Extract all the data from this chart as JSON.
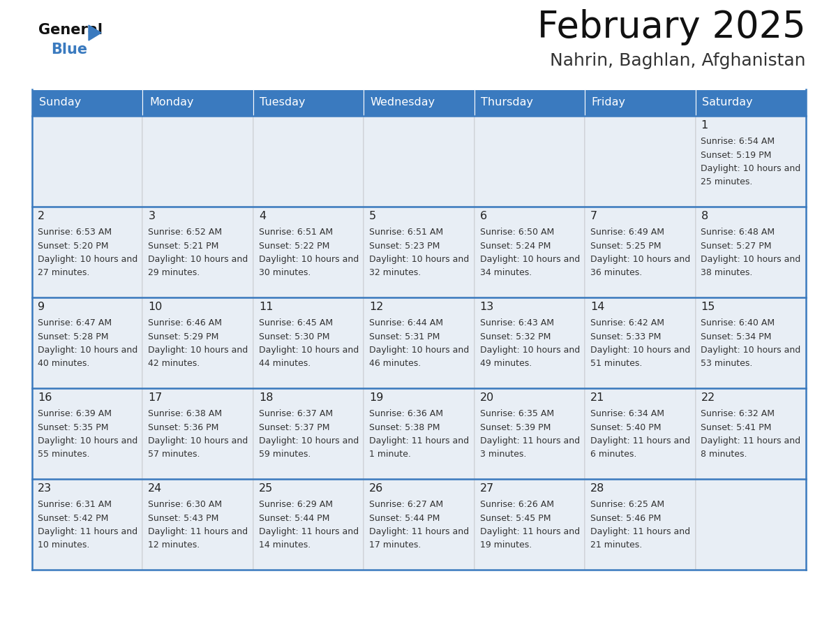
{
  "title": "February 2025",
  "subtitle": "Nahrin, Baghlan, Afghanistan",
  "header_color": "#3a7abf",
  "header_text_color": "#ffffff",
  "cell_bg_light": "#e8eef5",
  "cell_bg_white": "#ffffff",
  "border_color": "#3a7abf",
  "text_color": "#333333",
  "day_num_color": "#222222",
  "days_of_week": [
    "Sunday",
    "Monday",
    "Tuesday",
    "Wednesday",
    "Thursday",
    "Friday",
    "Saturday"
  ],
  "calendar_data": [
    [
      {
        "day": "",
        "sunrise": "",
        "sunset": "",
        "daylight": ""
      },
      {
        "day": "",
        "sunrise": "",
        "sunset": "",
        "daylight": ""
      },
      {
        "day": "",
        "sunrise": "",
        "sunset": "",
        "daylight": ""
      },
      {
        "day": "",
        "sunrise": "",
        "sunset": "",
        "daylight": ""
      },
      {
        "day": "",
        "sunrise": "",
        "sunset": "",
        "daylight": ""
      },
      {
        "day": "",
        "sunrise": "",
        "sunset": "",
        "daylight": ""
      },
      {
        "day": "1",
        "sunrise": "6:54 AM",
        "sunset": "5:19 PM",
        "daylight": "10 hours and 25 minutes."
      }
    ],
    [
      {
        "day": "2",
        "sunrise": "6:53 AM",
        "sunset": "5:20 PM",
        "daylight": "10 hours and 27 minutes."
      },
      {
        "day": "3",
        "sunrise": "6:52 AM",
        "sunset": "5:21 PM",
        "daylight": "10 hours and 29 minutes."
      },
      {
        "day": "4",
        "sunrise": "6:51 AM",
        "sunset": "5:22 PM",
        "daylight": "10 hours and 30 minutes."
      },
      {
        "day": "5",
        "sunrise": "6:51 AM",
        "sunset": "5:23 PM",
        "daylight": "10 hours and 32 minutes."
      },
      {
        "day": "6",
        "sunrise": "6:50 AM",
        "sunset": "5:24 PM",
        "daylight": "10 hours and 34 minutes."
      },
      {
        "day": "7",
        "sunrise": "6:49 AM",
        "sunset": "5:25 PM",
        "daylight": "10 hours and 36 minutes."
      },
      {
        "day": "8",
        "sunrise": "6:48 AM",
        "sunset": "5:27 PM",
        "daylight": "10 hours and 38 minutes."
      }
    ],
    [
      {
        "day": "9",
        "sunrise": "6:47 AM",
        "sunset": "5:28 PM",
        "daylight": "10 hours and 40 minutes."
      },
      {
        "day": "10",
        "sunrise": "6:46 AM",
        "sunset": "5:29 PM",
        "daylight": "10 hours and 42 minutes."
      },
      {
        "day": "11",
        "sunrise": "6:45 AM",
        "sunset": "5:30 PM",
        "daylight": "10 hours and 44 minutes."
      },
      {
        "day": "12",
        "sunrise": "6:44 AM",
        "sunset": "5:31 PM",
        "daylight": "10 hours and 46 minutes."
      },
      {
        "day": "13",
        "sunrise": "6:43 AM",
        "sunset": "5:32 PM",
        "daylight": "10 hours and 49 minutes."
      },
      {
        "day": "14",
        "sunrise": "6:42 AM",
        "sunset": "5:33 PM",
        "daylight": "10 hours and 51 minutes."
      },
      {
        "day": "15",
        "sunrise": "6:40 AM",
        "sunset": "5:34 PM",
        "daylight": "10 hours and 53 minutes."
      }
    ],
    [
      {
        "day": "16",
        "sunrise": "6:39 AM",
        "sunset": "5:35 PM",
        "daylight": "10 hours and 55 minutes."
      },
      {
        "day": "17",
        "sunrise": "6:38 AM",
        "sunset": "5:36 PM",
        "daylight": "10 hours and 57 minutes."
      },
      {
        "day": "18",
        "sunrise": "6:37 AM",
        "sunset": "5:37 PM",
        "daylight": "10 hours and 59 minutes."
      },
      {
        "day": "19",
        "sunrise": "6:36 AM",
        "sunset": "5:38 PM",
        "daylight": "11 hours and 1 minute."
      },
      {
        "day": "20",
        "sunrise": "6:35 AM",
        "sunset": "5:39 PM",
        "daylight": "11 hours and 3 minutes."
      },
      {
        "day": "21",
        "sunrise": "6:34 AM",
        "sunset": "5:40 PM",
        "daylight": "11 hours and 6 minutes."
      },
      {
        "day": "22",
        "sunrise": "6:32 AM",
        "sunset": "5:41 PM",
        "daylight": "11 hours and 8 minutes."
      }
    ],
    [
      {
        "day": "23",
        "sunrise": "6:31 AM",
        "sunset": "5:42 PM",
        "daylight": "11 hours and 10 minutes."
      },
      {
        "day": "24",
        "sunrise": "6:30 AM",
        "sunset": "5:43 PM",
        "daylight": "11 hours and 12 minutes."
      },
      {
        "day": "25",
        "sunrise": "6:29 AM",
        "sunset": "5:44 PM",
        "daylight": "11 hours and 14 minutes."
      },
      {
        "day": "26",
        "sunrise": "6:27 AM",
        "sunset": "5:44 PM",
        "daylight": "11 hours and 17 minutes."
      },
      {
        "day": "27",
        "sunrise": "6:26 AM",
        "sunset": "5:45 PM",
        "daylight": "11 hours and 19 minutes."
      },
      {
        "day": "28",
        "sunrise": "6:25 AM",
        "sunset": "5:46 PM",
        "daylight": "11 hours and 21 minutes."
      },
      {
        "day": "",
        "sunrise": "",
        "sunset": "",
        "daylight": ""
      }
    ]
  ]
}
